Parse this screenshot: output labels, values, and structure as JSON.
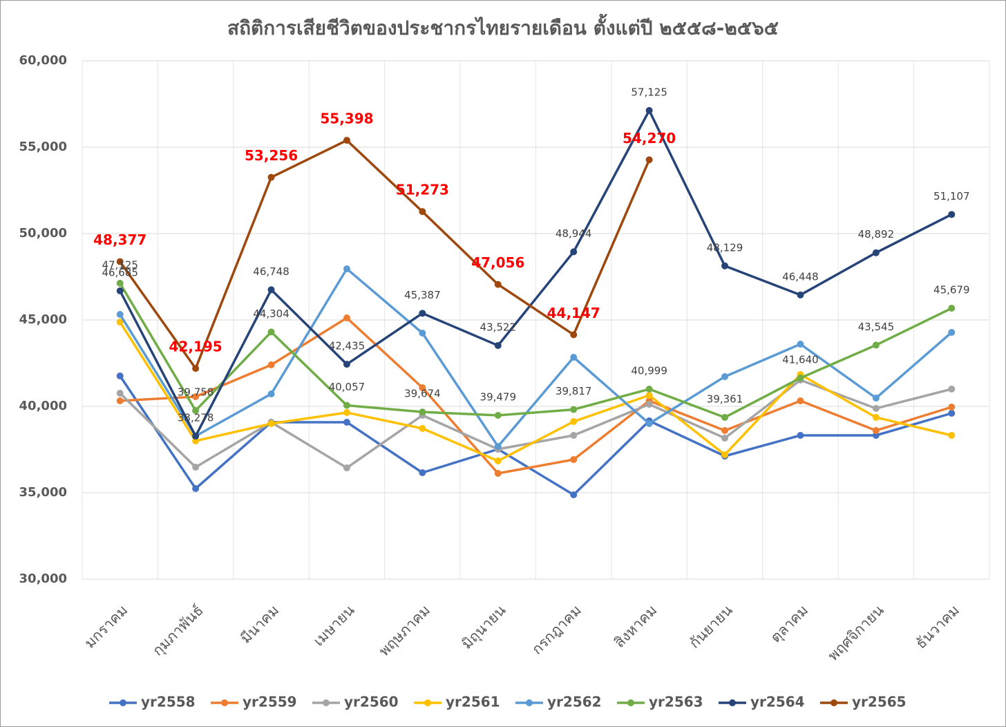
{
  "chart_data": {
    "type": "line",
    "title": "สถิติการเสียชีวิตของประชากรไทยรายเดือน ตั้งแต่ปี ๒๕๕๘-๒๕๖๕",
    "categories": [
      "มกราคม",
      "กุมภาพันธ์",
      "มีนาคม",
      "เมษายน",
      "พฤษภาคม",
      "มิถุนายน",
      "กรกฎาคม",
      "สิงหาคม",
      "กันยายน",
      "ตุลาคม",
      "พฤศจิกายน",
      "ธันวาคม"
    ],
    "ylim": [
      30000,
      60000
    ],
    "yticks": [
      {
        "value": 30000,
        "label": "30,000"
      },
      {
        "value": 35000,
        "label": "35,000"
      },
      {
        "value": 40000,
        "label": "40,000"
      },
      {
        "value": 45000,
        "label": "45,000"
      },
      {
        "value": 50000,
        "label": "50,000"
      },
      {
        "value": 55000,
        "label": "55,000"
      },
      {
        "value": 60000,
        "label": "60,000"
      }
    ],
    "grid": true,
    "legend": "bottom",
    "series": [
      {
        "name": "yr2558",
        "color": "#4472c4",
        "values": [
          41760,
          35240,
          39080,
          39080,
          36160,
          37520,
          34880,
          39160,
          37120,
          38320,
          38320,
          39600
        ]
      },
      {
        "name": "yr2559",
        "color": "#ed7d31",
        "values": [
          40320,
          40560,
          42400,
          45120,
          41080,
          36120,
          36920,
          40320,
          38600,
          40320,
          38600,
          39960
        ]
      },
      {
        "name": "yr2560",
        "color": "#a5a5a5",
        "values": [
          40760,
          36480,
          39080,
          36440,
          39480,
          37520,
          38320,
          40120,
          38160,
          41520,
          39880,
          41000
        ]
      },
      {
        "name": "yr2561",
        "color": "#ffc000",
        "values": [
          44880,
          38000,
          39000,
          39640,
          38720,
          36840,
          39120,
          40640,
          37200,
          41840,
          39360,
          38320
        ]
      },
      {
        "name": "yr2562",
        "color": "#5b9bd5",
        "values": [
          45320,
          38280,
          40720,
          47960,
          44240,
          37680,
          42840,
          39000,
          41720,
          43600,
          40480,
          44280
        ]
      },
      {
        "name": "yr2563",
        "color": "#70ad47",
        "values": [
          47125,
          39758,
          44304,
          40057,
          39674,
          39479,
          39817,
          40999,
          39361,
          41640,
          43545,
          45679
        ],
        "value_labels": [
          "47,125",
          "39,758",
          "44,304",
          "40,057",
          "39,674",
          "39,479",
          "39,817",
          "40,999",
          "39,361",
          "41,640",
          "43,545",
          "45,679"
        ]
      },
      {
        "name": "yr2564",
        "color": "#264478",
        "values": [
          46685,
          38278,
          46748,
          42435,
          45387,
          43522,
          48944,
          57125,
          48129,
          46448,
          48892,
          51107
        ],
        "value_labels": [
          "46,685",
          "38,278",
          "46,748",
          "42,435",
          "45,387",
          "43,522",
          "48,944",
          "57,125",
          "48,129",
          "46,448",
          "48,892",
          "51,107"
        ]
      },
      {
        "name": "yr2565",
        "color": "#9e480e",
        "values": [
          48377,
          42195,
          53256,
          55398,
          51273,
          47056,
          44147,
          54270,
          null,
          null,
          null,
          null
        ],
        "value_labels": [
          "48,377",
          "42,195",
          "53,256",
          "55,398",
          "51,273",
          "47,056",
          "44,147",
          "54,270",
          null,
          null,
          null,
          null
        ]
      }
    ]
  }
}
